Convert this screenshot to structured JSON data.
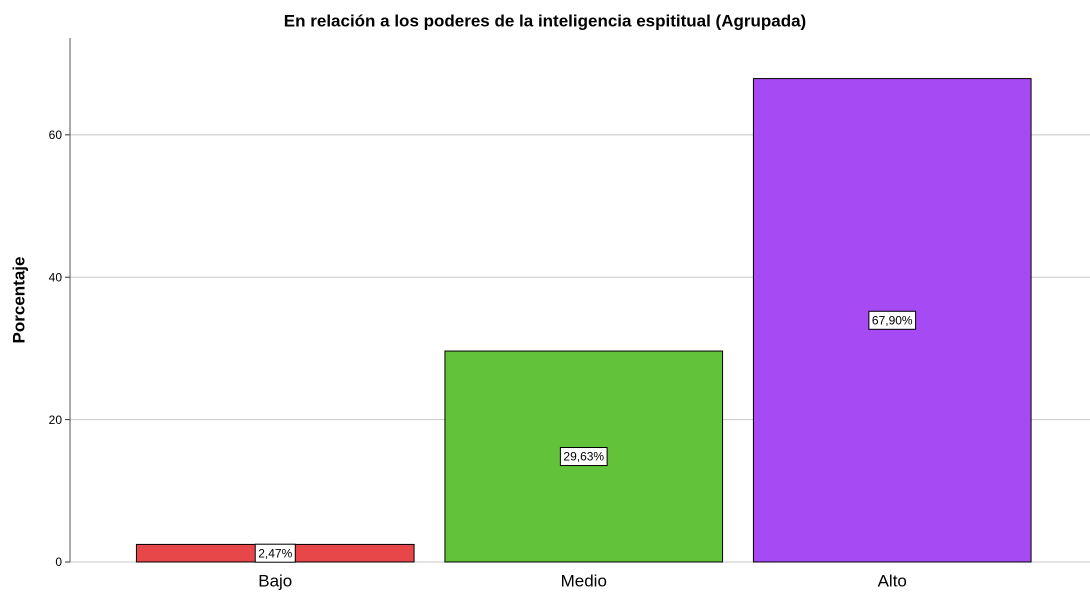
{
  "chart_data": {
    "type": "bar",
    "title": "En relación a los poderes de la inteligencia espititual (Agrupada)",
    "y_label": "Porcentaje",
    "categories": [
      "Bajo",
      "Medio",
      "Alto"
    ],
    "values": [
      2.47,
      29.63,
      67.9
    ],
    "value_labels": [
      "2,47%",
      "29,63%",
      "67,90%"
    ],
    "colors": [
      "#e8474a",
      "#62c23a",
      "#a64bf4"
    ],
    "ylim": [
      0,
      73.6
    ],
    "yticks": [
      0,
      20,
      40,
      60
    ],
    "grid": true
  }
}
